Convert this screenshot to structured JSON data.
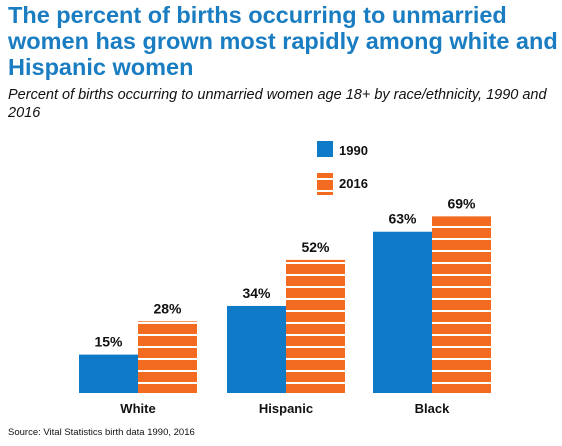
{
  "chart_data": {
    "type": "bar",
    "title": "The percent of births occurring to unmarried women has grown most rapidly among white and Hispanic women",
    "subtitle": "Percent of births occurring to unmarried women age 18+ by race/ethnicity, 1990 and 2016",
    "categories": [
      "White",
      "Hispanic",
      "Black"
    ],
    "series": [
      {
        "name": "1990",
        "values": [
          15,
          34,
          63
        ],
        "labels": [
          "15%",
          "34%",
          "63%"
        ],
        "color": "#0f7ac7",
        "pattern": "solid"
      },
      {
        "name": "2016",
        "values": [
          28,
          52,
          69
        ],
        "labels": [
          "28%",
          "52%",
          "69%"
        ],
        "color": "#f26b21",
        "pattern": "horizontal-stripes"
      }
    ],
    "ylim": [
      0,
      75
    ],
    "grid": false,
    "legend": "top-right",
    "source": "Source: Vital Statistics birth data 1990, 2016"
  }
}
